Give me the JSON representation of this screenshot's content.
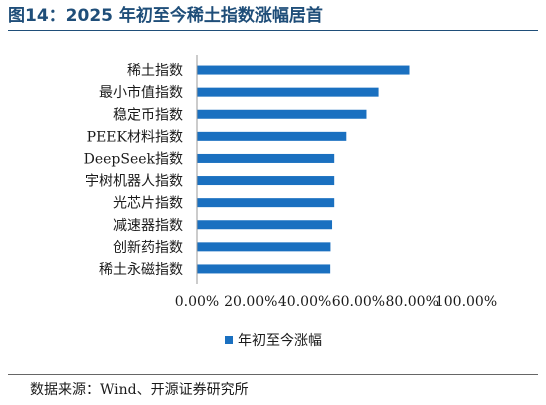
{
  "figure": {
    "title": "图14：2025 年初至今稀土指数涨幅居首",
    "source": "数据来源：Wind、开源证券研究所"
  },
  "colors": {
    "bar": "#1a70c0",
    "axis": "#9a9a9a",
    "title": "#1f4e79"
  },
  "chart_data": {
    "type": "bar",
    "orientation": "horizontal",
    "title": "",
    "xlabel": "",
    "ylabel": "",
    "categories": [
      "稀土指数",
      "最小市值指数",
      "稳定币指数",
      "PEEK材料指数",
      "DeepSeek指数",
      "宇树机器人指数",
      "光芯片指数",
      "减速器指数",
      "创新药指数",
      "稀土永磁指数"
    ],
    "series": [
      {
        "name": "年初至今涨幅",
        "values": [
          79.0,
          67.5,
          63.0,
          55.5,
          51.0,
          51.0,
          51.0,
          50.2,
          49.6,
          49.5
        ]
      }
    ],
    "xlim": [
      0,
      100
    ],
    "x_ticks": [
      0,
      20,
      40,
      60,
      80,
      100
    ],
    "x_tick_labels": [
      "0.00%",
      "20.00%",
      "40.00%",
      "60.00%",
      "80.00%",
      "100.00%"
    ],
    "grid": false,
    "legend": "bottom"
  }
}
